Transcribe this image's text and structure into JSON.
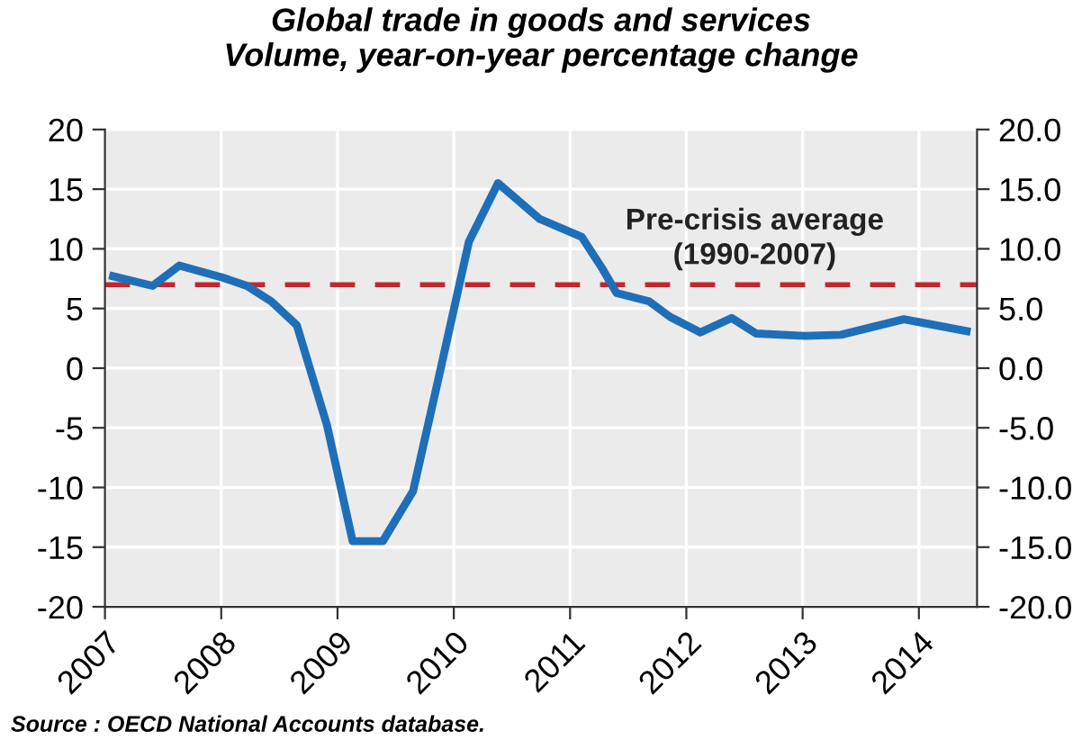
{
  "chart_data": {
    "type": "line",
    "title": "Global trade in goods and services\nVolume, year-on-year percentage change",
    "x": [
      2007.07,
      2007.41,
      2007.64,
      2008.01,
      2008.22,
      2008.43,
      2008.65,
      2008.91,
      2009.13,
      2009.39,
      2009.65,
      2009.87,
      2010.13,
      2010.38,
      2010.74,
      2011.1,
      2011.28,
      2011.4,
      2011.68,
      2011.86,
      2012.12,
      2012.39,
      2012.6,
      2013.02,
      2013.33,
      2013.87,
      2014.41
    ],
    "series": [
      {
        "color": "#1f6fb8",
        "values": [
          7.7,
          6.9,
          8.6,
          7.6,
          6.9,
          5.6,
          3.6,
          -4.8,
          -14.5,
          -14.5,
          -10.3,
          -0.8,
          10.6,
          15.5,
          12.5,
          11.0,
          8.3,
          6.3,
          5.6,
          4.3,
          3.0,
          4.2,
          2.9,
          2.7,
          2.8,
          4.1,
          3.1
        ]
      }
    ],
    "xlim": [
      2007,
      2014.5
    ],
    "xticks": [
      2007,
      2008,
      2009,
      2010,
      2011,
      2012,
      2013,
      2014
    ],
    "ylim": [
      -20,
      20
    ],
    "yticks": [
      -20,
      -15,
      -10,
      -5,
      0,
      5,
      10,
      15,
      20
    ],
    "y2lim": [
      -20,
      20
    ],
    "y2ticks": [
      {
        "value": -20,
        "label": "-20.0"
      },
      {
        "value": -15,
        "label": "-15.0"
      },
      {
        "value": -10,
        "label": "-10.0"
      },
      {
        "value": -5,
        "label": "-5.0"
      },
      {
        "value": 0,
        "label": "0.0"
      },
      {
        "value": 5,
        "label": "5.0"
      },
      {
        "value": 10,
        "label": "10.0"
      },
      {
        "value": 15,
        "label": "15.0"
      },
      {
        "value": 20,
        "label": "20.0"
      }
    ],
    "ref_lines": [
      {
        "axis": "y",
        "value": 7,
        "label": "Pre-crisis average\n(1990-2007)",
        "color": "#c0282d",
        "line_style": "dashed"
      }
    ],
    "annotations": [
      "Source : OECD National Accounts database."
    ],
    "grid": true,
    "legend": false,
    "marker": "none",
    "line_style": "solid"
  }
}
